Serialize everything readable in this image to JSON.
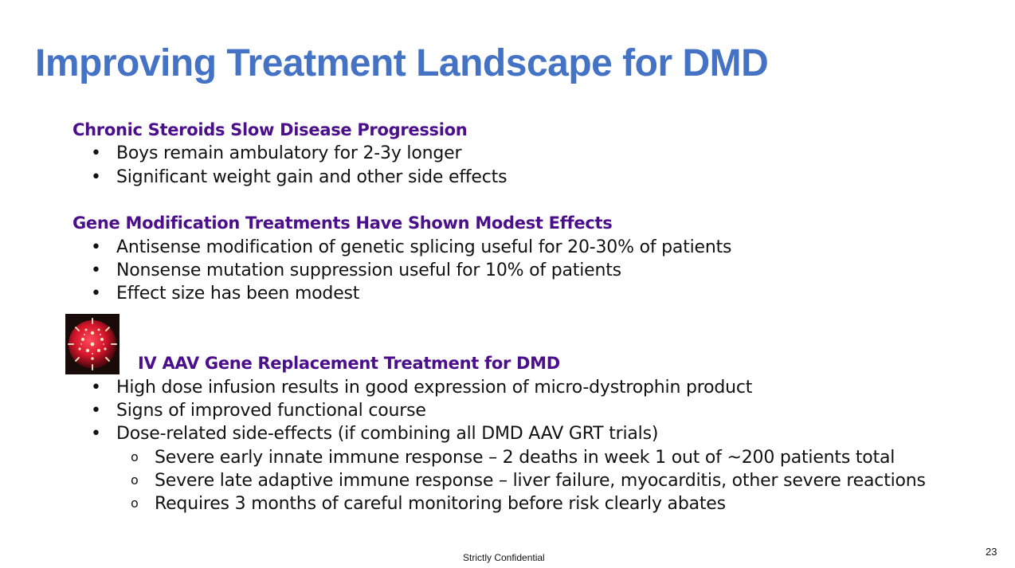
{
  "slide": {
    "title": "Improving Treatment Landscape for DMD",
    "sections": [
      {
        "heading": "Chronic Steroids Slow Disease Progression",
        "bullets": [
          "Boys remain ambulatory for 2-3y longer",
          "Significant weight gain and other side effects"
        ]
      },
      {
        "heading": "Gene Modification Treatments Have Shown Modest Effects",
        "bullets": [
          "Antisense modification of genetic splicing useful for 20-30% of patients",
          "Nonsense mutation suppression useful for 10% of patients",
          "Effect size has been modest"
        ]
      },
      {
        "heading": "IV AAV Gene Replacement Treatment for DMD",
        "bullets": [
          "High dose infusion results in good expression of micro-dystrophin product",
          "Signs of improved functional course",
          "Dose-related side-effects (if combining all DMD AAV GRT trials)"
        ],
        "sub_bullets": [
          "Severe early innate immune response – 2 deaths in week 1 out of ~200 patients total",
          "Severe late adaptive immune response – liver failure, myocarditis, other severe reactions",
          "Requires 3 months of careful monitoring before risk clearly abates"
        ]
      }
    ],
    "bullet_symbol": "•",
    "sub_bullet_symbol": "o",
    "image_icon": "aav-virus-particle-icon",
    "footer": "Strictly Confidential",
    "page_number": "23",
    "colors": {
      "title": "#4472c4",
      "heading": "#4b0f8c",
      "text": "#111111"
    }
  }
}
